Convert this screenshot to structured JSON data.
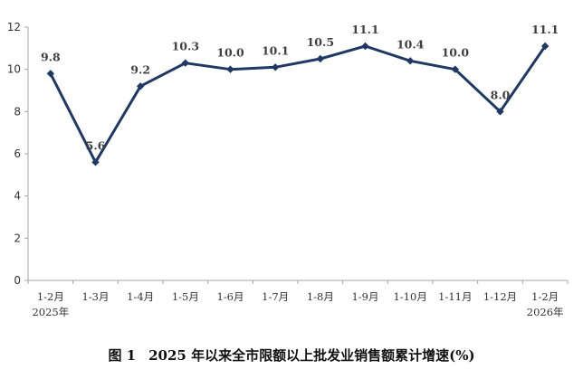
{
  "caption": {
    "figure_number": "图 1",
    "text": "2025 年以来全市限额以上批发业销售额累计增速(%)"
  },
  "chart_data": {
    "type": "line",
    "title": "",
    "xlabel": "",
    "ylabel": "",
    "ylim": [
      0,
      12
    ],
    "y_ticks": [
      0,
      2,
      4,
      6,
      8,
      10,
      12
    ],
    "grid": false,
    "legend": "none",
    "line_color": "#1F3864",
    "categories": [
      {
        "label": "1-2月",
        "sublabel": "2025年"
      },
      {
        "label": "1-3月",
        "sublabel": ""
      },
      {
        "label": "1-4月",
        "sublabel": ""
      },
      {
        "label": "1-5月",
        "sublabel": ""
      },
      {
        "label": "1-6月",
        "sublabel": ""
      },
      {
        "label": "1-7月",
        "sublabel": ""
      },
      {
        "label": "1-8月",
        "sublabel": ""
      },
      {
        "label": "1-9月",
        "sublabel": ""
      },
      {
        "label": "1-10月",
        "sublabel": ""
      },
      {
        "label": "1-11月",
        "sublabel": ""
      },
      {
        "label": "1-12月",
        "sublabel": ""
      },
      {
        "label": "1-2月",
        "sublabel": "2026年"
      }
    ],
    "series": [
      {
        "values": [
          9.8,
          5.6,
          9.2,
          10.3,
          10.0,
          10.1,
          10.5,
          11.1,
          10.4,
          10.0,
          8.0,
          11.1
        ],
        "labels": [
          "9.8",
          "5.6",
          "9.2",
          "10.3",
          "10.0",
          "10.1",
          "10.5",
          "11.1",
          "10.4",
          "10.0",
          "8.0",
          "11.1"
        ]
      }
    ]
  }
}
